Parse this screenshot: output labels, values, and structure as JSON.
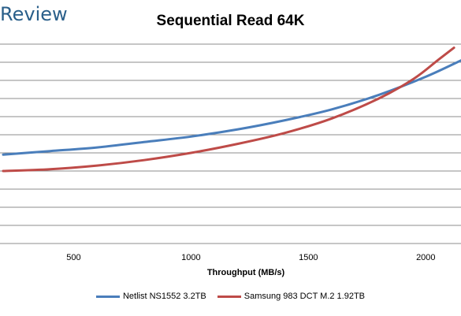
{
  "watermark": "Review",
  "chart_data": {
    "type": "line",
    "title": "Sequential Read 64K",
    "xlabel": "Throughput (MB/s)",
    "ylabel": "",
    "xlim": [
      200,
      2150
    ],
    "ylim": [
      0,
      12
    ],
    "x_ticks": [
      500,
      1000,
      1500,
      2000
    ],
    "y_gridlines": [
      1,
      2,
      3,
      4,
      5,
      6,
      7,
      8,
      9,
      10,
      11
    ],
    "grid": true,
    "legend_position": "bottom",
    "series": [
      {
        "name": "Netlist NS1552 3.2TB",
        "color": "#4a7ebb",
        "x": [
          200,
          400,
          600,
          800,
          1000,
          1200,
          1400,
          1600,
          1800,
          2000,
          2150
        ],
        "values": [
          4.9,
          5.1,
          5.3,
          5.6,
          5.9,
          6.3,
          6.8,
          7.4,
          8.2,
          9.2,
          10.1
        ]
      },
      {
        "name": "Samsung 983 DCT M.2 1.92TB",
        "color": "#be4b48",
        "x": [
          200,
          400,
          600,
          800,
          1000,
          1200,
          1400,
          1600,
          1800,
          1950,
          2050,
          2120
        ],
        "values": [
          4.0,
          4.1,
          4.3,
          4.6,
          5.0,
          5.5,
          6.1,
          6.9,
          8.0,
          9.1,
          10.1,
          10.8
        ]
      }
    ]
  }
}
